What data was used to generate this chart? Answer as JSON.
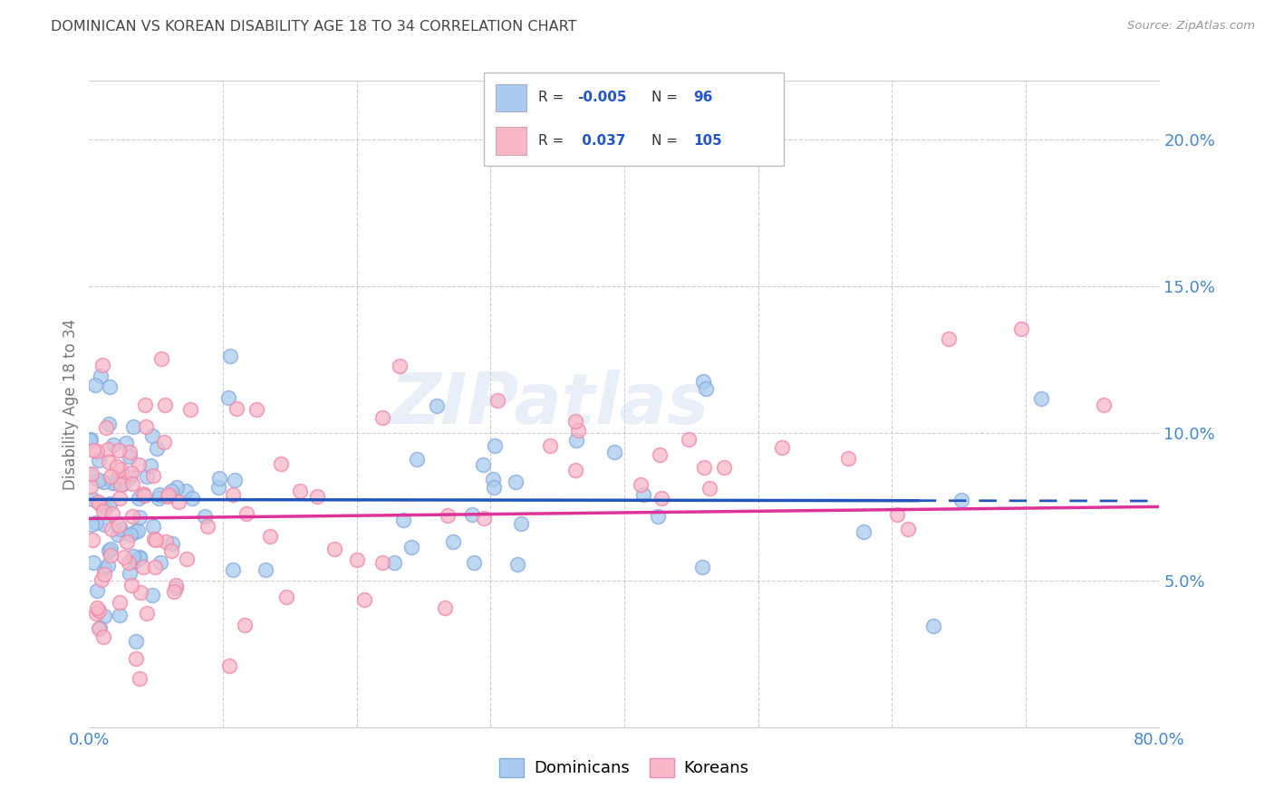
{
  "title": "DOMINICAN VS KOREAN DISABILITY AGE 18 TO 34 CORRELATION CHART",
  "source": "Source: ZipAtlas.com",
  "ylabel": "Disability Age 18 to 34",
  "watermark": "ZIPatlas",
  "xlim": [
    0.0,
    0.8
  ],
  "ylim": [
    0.0,
    0.22
  ],
  "yticks": [
    0.05,
    0.1,
    0.15,
    0.2
  ],
  "xtick_positions": [
    0.0,
    0.8
  ],
  "dominicans_R": "-0.005",
  "dominicans_N": "96",
  "koreans_R": "0.037",
  "koreans_N": "105",
  "dominican_fill": "#aaccee",
  "dominican_edge": "#88aadd",
  "korean_fill": "#f8b8c8",
  "korean_edge": "#ee88aa",
  "dominican_line_color": "#2255bb",
  "korean_line_color": "#dd3399",
  "background_color": "#ffffff",
  "grid_color": "#cccccc",
  "title_color": "#444444",
  "tick_label_color": "#4488cc",
  "ylabel_color": "#777777",
  "legend_text_color_label": "#333333",
  "legend_text_color_value": "#2255cc",
  "seed": 77
}
